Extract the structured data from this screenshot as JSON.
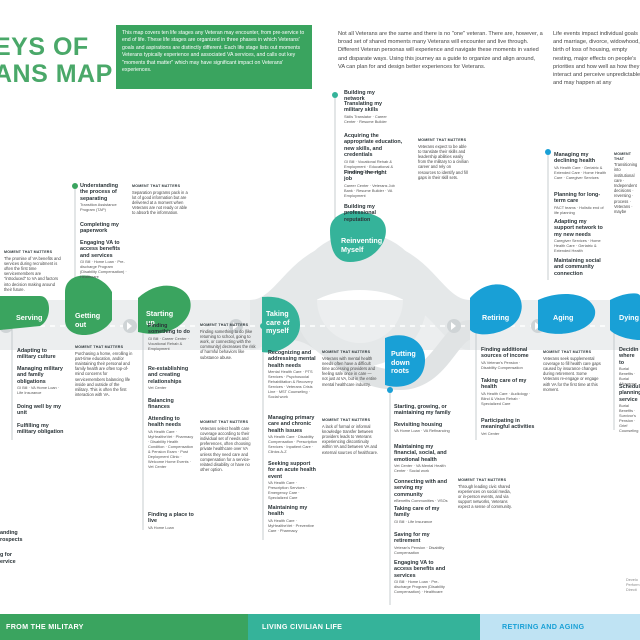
{
  "header": {
    "title_line1": "EYS OF",
    "title_line2": "ANS MAP",
    "intro_box": "This map covers ten life stages any Veteran may encounter, from pre-service to end of life. These life stages are organized in three phases in which Veterans' goals and aspirations are distinctly different. Each life stage lists out moments Veterans typically experience and associated VA services, and calls out key \"moments that matter\" which may have significant impact on Veterans' experiences.",
    "intro_text": "Not all Veterans are the same and there is no \"one\" veteran. There are, however, a broad set of shared moments many Veterans will encounter and live through. Different Veteran personas will experience and navigate these moments in varied and disparate ways. Using this journey as a guide to organize and align around, VA can plan for and design better experiences for Veterans.",
    "intro_text2": "Life events impact individual goals and marriage, divorce, widowhood, birth of loss of housing, empty nesting, major effects on people's priorities and how well as how they interact and perceive unpredictable and may happen at any"
  },
  "stages": {
    "serving": "Serving",
    "getting_out": "Getting out",
    "starting_up": "Starting up",
    "taking_care": "Taking care of myself",
    "reinventing": "Reinventing Myself",
    "putting_down": "Putting down roots",
    "retiring": "Retiring",
    "aging": "Aging",
    "dying": "Dying"
  },
  "pre_service": {
    "mm_title": "MOMENT THAT MATTERS",
    "mm_text": "The promise of VA benefits and services during recruitment is often the first time servicemembers are \"introduced\" to VA and factors into decision making around their future."
  },
  "serving_items": [
    {
      "h": "Adapting to military culture",
      "s": ""
    },
    {
      "h": "Managing military and family obligations",
      "s": "GI Bill · VA Home Loan · Life Insurance"
    },
    {
      "h": "Doing well by my unit",
      "s": ""
    },
    {
      "h": "Fulfilling my military obligation",
      "s": ""
    }
  ],
  "getting_out_items": [
    {
      "h": "Understanding the process of separating",
      "s": "Transition Assistance Program (TAP)"
    },
    {
      "h": "Completing my paperwork",
      "s": ""
    },
    {
      "h": "Engaging VA to access benefits and services",
      "s": "GI Bill · Home Loan · Pre-discharge Program (Disability Compensation) · Healthcare"
    }
  ],
  "getting_out_mm": {
    "title": "MOMENT THAT MATTERS",
    "text": "Separation programs pack in a lot of good information but are delivered at a moment when Veterans are not ready or able to absorb the information."
  },
  "serving_mm": {
    "title": "MOMENT THAT MATTERS",
    "text": "Purchasing a home, enrolling in part-time education, and/or maintaining their personal and family health are often top-of-mind concerns for servicemembers balancing life inside and outside of the military. This is often the first interaction with VA."
  },
  "starting_up_items": [
    {
      "h": "Finding something to do",
      "s": "GI Bill · Career Center · Vocational Rehab & Employment"
    },
    {
      "h": "Re-establishing and creating relationships",
      "s": "Vet Center"
    },
    {
      "h": "Balancing finances",
      "s": ""
    },
    {
      "h": "Attending to health needs",
      "s": "VA Health Care · MyHealtheVet · Pharmacy · Disability Health Condition · Compensation & Pension Exam · Post Deployment Clinic · Welcome Home Events · Vet Center"
    },
    {
      "h": "Finding a place to live",
      "s": "VA Home Loan"
    }
  ],
  "starting_up_mm": [
    {
      "title": "MOMENT THAT MATTERS",
      "text": "Finding something to do (like returning to school, going to work, or connecting with the community) decreases the risk of harmful behaviors like substance abuse."
    },
    {
      "title": "MOMENT THAT MATTERS",
      "text": "Veterans select health care coverage according to their individual set of needs and preferences, often choosing private healthcare over VA unless they need care and compensation for a service-related disability or have no other option."
    }
  ],
  "taking_care_items": [
    {
      "h": "Recognizing and addressing mental health needs",
      "s": "Mental Health Care · PTS Services · Psychosocial Rehabilitation & Recovery Services · Veterans Crisis Line · MST Counseling · Social work"
    },
    {
      "h": "Managing primary care and chronic health issues",
      "s": "VA Health Care · Disability Compensation · Prescription Services · Inpatient Care · Clinics A-Z"
    },
    {
      "h": "Seeking support for an acute health event",
      "s": "VA Health Care · Prescription Services · Emergency Care · Specialized Care"
    },
    {
      "h": "Maintaining my health",
      "s": "VA Health Care · MyHealtheVet · Preventive Care · Pharmacy"
    }
  ],
  "taking_care_mm": [
    {
      "title": "MOMENT THAT MATTERS",
      "text": "Veterans with mental health needs often have a difficult time accessing providers and feeling safe once in care — not just at VA, but in the entire mental healthcare industry."
    },
    {
      "title": "MOMENT THAT MATTERS",
      "text": "A lack of formal or informal knowledge transfer between providers leads to Veterans experiencing discontinuity within VA and between VA and external sources of healthcare."
    }
  ],
  "reinventing_items": [
    {
      "h": "Building my network",
      "s": ""
    },
    {
      "h": "Translating my military skills",
      "s": "Skills Translator · Career Center · Resume Builder"
    },
    {
      "h": "Acquiring the appropriate education, new skills, and credentials",
      "s": "GI Bill · Vocational Rehab & Employment · Educational & Vocational Counseling"
    },
    {
      "h": "Finding the right job",
      "s": "Career Center · Veterans Job Bank · Resume Builder · VA Employment"
    },
    {
      "h": "Building my professional reputation",
      "s": ""
    }
  ],
  "reinventing_mm": {
    "title": "MOMENT THAT MATTERS",
    "text": "Veterans expect to be able to translate their skills and leadership abilities easily from the military to a civilian career and rely on resources to identify and fill gaps in their skill sets."
  },
  "putting_down_items": [
    {
      "h": "Starting, growing, or maintaining my family",
      "s": ""
    },
    {
      "h": "Revisiting housing",
      "s": "VA Home Loan · VA Refinancing"
    },
    {
      "h": "Maintaining my financial, social, and emotional health",
      "s": "Vet Center · VA Mental Health Center · Social work"
    },
    {
      "h": "Connecting with and serving my community",
      "s": "eBenefits Communities · VSOs"
    },
    {
      "h": "Taking care of my family",
      "s": "GI Bill · Life Insurance"
    },
    {
      "h": "Saving for my retirement",
      "s": "Veteran's Pension · Disability Compensation"
    },
    {
      "h": "Engaging VA to access benefits and services",
      "s": "GI Bill · Home Loan · Pre-discharge Program (Disability Compensation) · Healthcare"
    }
  ],
  "putting_down_mm": {
    "title": "MOMENT THAT MATTERS",
    "text": "Through leading civic shared experiences on social media, or in-person events, and via support networks, Veterans expect a sense of community."
  },
  "retiring_items": [
    {
      "h": "Finding additional sources of income",
      "s": "VA Veteran's Pension · Disability Compensation"
    },
    {
      "h": "Taking care of my health",
      "s": "VA Health Care · Audiology · Blind & Vision Rehab · Specialized Care"
    },
    {
      "h": "Participating in meaningful activities",
      "s": "Vet Center"
    }
  ],
  "aging_items": [
    {
      "h": "Managing my declining health",
      "s": "VA Health Care · Geriatric & Extended Care · Home Health Care · Caregiver Services"
    },
    {
      "h": "Planning for long-term care",
      "s": "PACT teams · Holistic end of life planning"
    },
    {
      "h": "Adapting my support network to my new needs",
      "s": "Caregiver Services · Home Health Care · Geriatric & Extended Health"
    },
    {
      "h": "Maintaining social and community connection",
      "s": ""
    }
  ],
  "aging_mm": {
    "title": "MOMENT THAT MATTERS",
    "text": "Veterans seek supplemental coverage to fill health care gaps caused by insurance changes during retirement. Some Veterans re-engage or engage with VA for the first time at this moment."
  },
  "dying_items": [
    {
      "h": "Decidin where to",
      "s": "Burial Benefits · Burial Allowance"
    },
    {
      "h": "Schedul planning service",
      "s": "Burial Benefits · Survivor's Pension · Grief Counseling"
    }
  ],
  "dying_mm": {
    "title": "MOMENT THAT",
    "text": "Transitioning into institutional care · Independent decisions · reversing · process · Veterans · maybe"
  },
  "left_cut": {
    "a": "anding",
    "b": "rospects",
    "c": "g for",
    "d": "ervice"
  },
  "footer": {
    "from_military": "FROM THE MILITARY",
    "civilian_life": "LIVING CIVILIAN LIFE",
    "retiring_aging": "RETIRING AND AGING",
    "note": "Develo Perform Directi"
  },
  "colors": {
    "green": "#3aa45f",
    "teal": "#35b39a",
    "blue": "#19a0d6",
    "road": "#e3e6e7"
  }
}
